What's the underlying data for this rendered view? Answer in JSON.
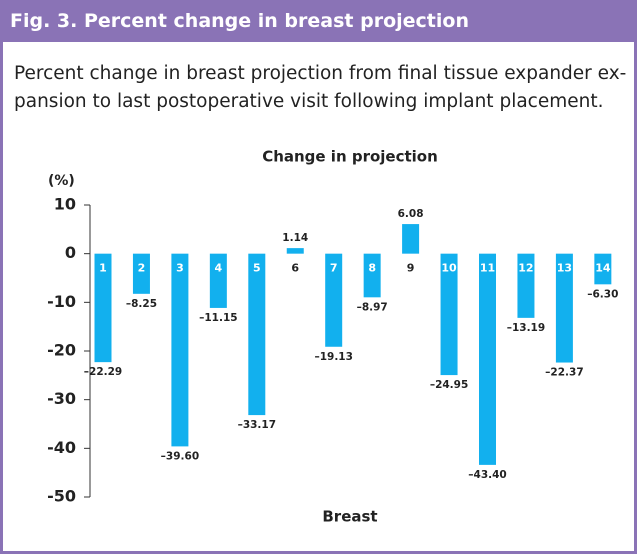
{
  "header": {
    "title": "Fig. 3. Percent change in breast projection"
  },
  "caption": [
    "Percent change in breast projection from final tissue expander ex-",
    "pansion to last postoperative visit following implant placement."
  ],
  "chart_data": {
    "type": "bar",
    "title": "Change in projection",
    "y_label": "(%)",
    "x_label": "Breast",
    "categories": [
      "1",
      "2",
      "3",
      "4",
      "5",
      "6",
      "7",
      "8",
      "9",
      "10",
      "11",
      "12",
      "13",
      "14"
    ],
    "values": [
      -22.29,
      -8.25,
      -39.6,
      -11.15,
      -33.17,
      1.14,
      -19.13,
      -8.97,
      6.08,
      -24.95,
      -43.4,
      -13.19,
      -22.37,
      -6.3
    ],
    "value_labels": [
      "–22.29",
      "–8.25",
      "–39.60",
      "–11.15",
      "–33.17",
      "1.14",
      "–19.13",
      "–8.97",
      "6.08",
      "–24.95",
      "–43.40",
      "–13.19",
      "–22.37",
      "–6.30"
    ],
    "color": "#12b0ee",
    "ylim": [
      -50,
      10
    ],
    "yticks": [
      10,
      0,
      -10,
      -20,
      -30,
      -40,
      -50
    ]
  }
}
